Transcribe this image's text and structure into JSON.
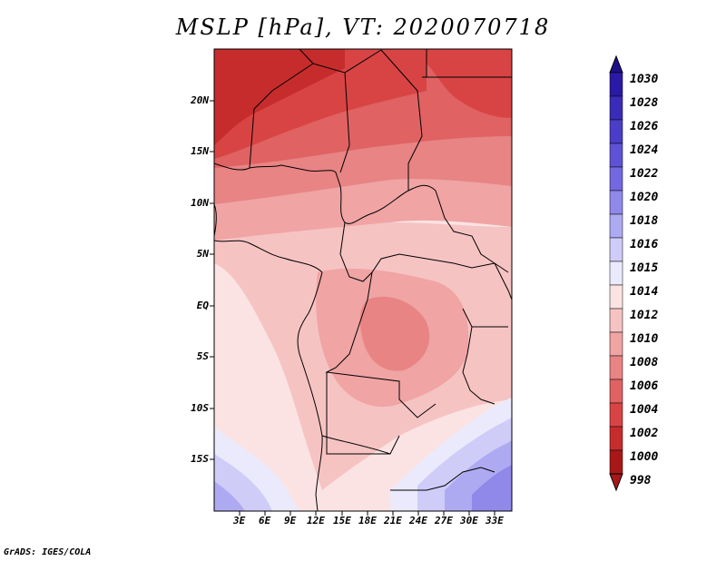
{
  "title": "MSLP [hPa], VT: 2020070718",
  "credit": "GrADS: IGES/COLA",
  "map": {
    "variable": "MSLP",
    "units": "hPa",
    "valid_time": "2020070718",
    "lon_range": [
      0,
      35
    ],
    "lat_range": [
      -20,
      25
    ],
    "lat_labels": [
      {
        "lat": 20,
        "text": "20N"
      },
      {
        "lat": 15,
        "text": "15N"
      },
      {
        "lat": 10,
        "text": "10N"
      },
      {
        "lat": 5,
        "text": "5N"
      },
      {
        "lat": 0,
        "text": "EQ"
      },
      {
        "lat": -5,
        "text": "5S"
      },
      {
        "lat": -10,
        "text": "10S"
      },
      {
        "lat": -15,
        "text": "15S"
      }
    ],
    "lon_labels": [
      {
        "lon": 3,
        "text": "3E"
      },
      {
        "lon": 6,
        "text": "6E"
      },
      {
        "lon": 9,
        "text": "9E"
      },
      {
        "lon": 12,
        "text": "12E"
      },
      {
        "lon": 15,
        "text": "15E"
      },
      {
        "lon": 18,
        "text": "18E"
      },
      {
        "lon": 21,
        "text": "21E"
      },
      {
        "lon": 24,
        "text": "24E"
      },
      {
        "lon": 27,
        "text": "27E"
      },
      {
        "lon": 30,
        "text": "30E"
      },
      {
        "lon": 33,
        "text": "33E"
      }
    ]
  },
  "colorbar": {
    "levels": [
      {
        "label": "1030",
        "color": "#1e0f8c"
      },
      {
        "label": "1028",
        "color": "#2a1aa6"
      },
      {
        "label": "1026",
        "color": "#3a2cb8"
      },
      {
        "label": "1024",
        "color": "#4a3ec8"
      },
      {
        "label": "1022",
        "color": "#5e52d6"
      },
      {
        "label": "1020",
        "color": "#7468e0"
      },
      {
        "label": "1018",
        "color": "#9089ea"
      },
      {
        "label": "1016",
        "color": "#aeaaf2"
      },
      {
        "label": "1015",
        "color": "#cfccf8"
      },
      {
        "label": "1014",
        "color": "#ebeafc"
      },
      {
        "label": "1012",
        "color": "#fbe3e3"
      },
      {
        "label": "1010",
        "color": "#f6c3c3"
      },
      {
        "label": "1008",
        "color": "#f0a4a4"
      },
      {
        "label": "1006",
        "color": "#e88484"
      },
      {
        "label": "1004",
        "color": "#e06262"
      },
      {
        "label": "1002",
        "color": "#d84444"
      },
      {
        "label": "1000",
        "color": "#c62c2c"
      },
      {
        "label": "998",
        "color": "#a81818"
      }
    ]
  }
}
